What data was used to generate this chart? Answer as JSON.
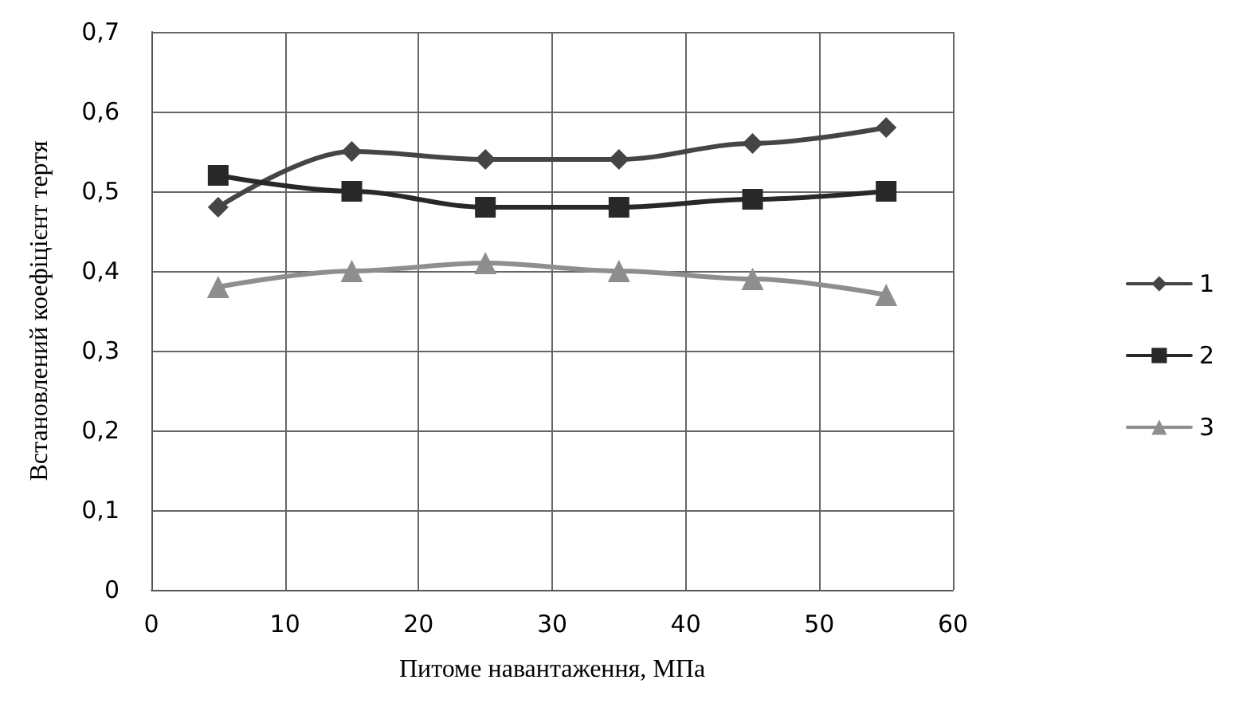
{
  "chart_data": {
    "type": "line",
    "xlabel": "Питоме навантаження, МПа",
    "ylabel": "Встановлений коефіцієнт тертя",
    "x": [
      5,
      15,
      25,
      35,
      45,
      55
    ],
    "series": [
      {
        "name": "1",
        "color": "#454545",
        "marker": "diamond",
        "values": [
          0.48,
          0.55,
          0.54,
          0.54,
          0.56,
          0.58
        ]
      },
      {
        "name": "2",
        "color": "#282828",
        "marker": "square",
        "values": [
          0.52,
          0.5,
          0.48,
          0.48,
          0.49,
          0.5
        ]
      },
      {
        "name": "3",
        "color": "#8e8e8e",
        "marker": "triangle",
        "values": [
          0.38,
          0.4,
          0.41,
          0.4,
          0.39,
          0.37
        ]
      }
    ],
    "xlim": [
      0,
      60
    ],
    "xticks": [
      0,
      10,
      20,
      30,
      40,
      50,
      60
    ],
    "ylim": [
      0,
      0.7
    ],
    "yticks": [
      0,
      {
        "value": 0.1,
        "label": "0,1"
      },
      {
        "value": 0.2,
        "label": "0,2"
      },
      {
        "value": 0.3,
        "label": "0,3"
      },
      {
        "value": 0.4,
        "label": "0,4"
      },
      {
        "value": 0.5,
        "label": "0,5"
      },
      {
        "value": 0.6,
        "label": "0,6"
      },
      {
        "value": 0.7,
        "label": "0,7"
      }
    ],
    "grid": true,
    "legend": "right",
    "line_style": "solid"
  }
}
